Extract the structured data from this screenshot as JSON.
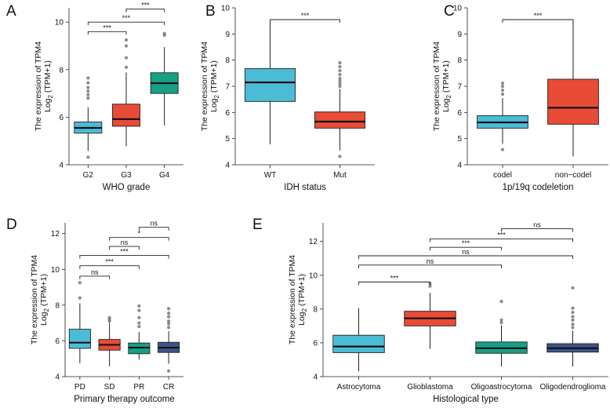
{
  "chart_data": [
    {
      "panel": "A",
      "type": "boxplot",
      "xlabel": "WHO grade",
      "ylabel_line1": "The expression of TPM4",
      "ylabel_line2": "Log2 (TPM+1)",
      "ylim": [
        4,
        10.6
      ],
      "yticks": [
        4,
        6,
        8,
        10
      ],
      "categories": [
        "G2",
        "G3",
        "G4"
      ],
      "colors": [
        "#4cbcd6",
        "#e84b36",
        "#16a085"
      ],
      "boxes": [
        {
          "q1": 5.33,
          "median": 5.55,
          "q3": 5.8,
          "low": 4.58,
          "high": 6.42,
          "outliers": [
            4.32,
            6.8,
            6.95,
            7.1,
            7.25,
            7.45,
            7.65
          ]
        },
        {
          "q1": 5.62,
          "median": 5.92,
          "q3": 6.55,
          "low": 4.78,
          "high": 7.88,
          "outliers": [
            8.1,
            8.5,
            9.0,
            9.25
          ]
        },
        {
          "q1": 7.0,
          "median": 7.43,
          "q3": 7.87,
          "low": 5.65,
          "high": 8.95,
          "outliers": [
            9.45,
            9.52
          ]
        }
      ],
      "comparisons": [
        {
          "from": 0,
          "to": 1,
          "label": "***",
          "y": 9.6
        },
        {
          "from": 0,
          "to": 2,
          "label": "***",
          "y": 10.0
        },
        {
          "from": 1,
          "to": 2,
          "label": "***",
          "y": 10.55
        }
      ]
    },
    {
      "panel": "B",
      "type": "boxplot",
      "xlabel": "IDH status",
      "ylabel_line1": "The expression of TPM4",
      "ylabel_line2": "Log2 (TPM+1)",
      "ylim": [
        4,
        10
      ],
      "yticks": [
        4,
        5,
        6,
        7,
        8,
        9,
        10
      ],
      "categories": [
        "WT",
        "Mut"
      ],
      "colors": [
        "#4cbcd6",
        "#e84b36"
      ],
      "boxes": [
        {
          "q1": 6.42,
          "median": 7.15,
          "q3": 7.68,
          "low": 4.78,
          "high": 9.48,
          "outliers": []
        },
        {
          "q1": 5.4,
          "median": 5.65,
          "q3": 6.02,
          "low": 4.55,
          "high": 6.9,
          "outliers": [
            4.32,
            7.0,
            7.1,
            7.2,
            7.3,
            7.45,
            7.6,
            7.75,
            7.9
          ]
        }
      ],
      "comparisons": [
        {
          "from": 0,
          "to": 1,
          "label": "***",
          "y": 9.55
        }
      ]
    },
    {
      "panel": "C",
      "type": "boxplot",
      "xlabel": "1p/19q codeletion",
      "ylabel_line1": "The expression of TPM4",
      "ylabel_line2": "Log2 (TPM+1)",
      "ylim": [
        4,
        10
      ],
      "yticks": [
        4,
        5,
        6,
        7,
        8,
        9,
        10
      ],
      "categories": [
        "codel",
        "non−codel"
      ],
      "colors": [
        "#4cbcd6",
        "#e84b36"
      ],
      "boxes": [
        {
          "q1": 5.4,
          "median": 5.62,
          "q3": 5.88,
          "low": 4.8,
          "high": 6.55,
          "outliers": [
            4.58,
            6.7,
            6.85,
            7.0,
            7.12
          ]
        },
        {
          "q1": 5.55,
          "median": 6.18,
          "q3": 7.27,
          "low": 4.32,
          "high": 9.52,
          "outliers": []
        }
      ],
      "comparisons": [
        {
          "from": 0,
          "to": 1,
          "label": "***",
          "y": 9.55
        }
      ]
    },
    {
      "panel": "D",
      "type": "boxplot",
      "xlabel": "Primary therapy outcome",
      "ylabel_line1": "The expression of TPM4",
      "ylabel_line2": "Log2 (TPM+1)",
      "ylim": [
        4,
        12.6
      ],
      "yticks": [
        4,
        6,
        8,
        10,
        12
      ],
      "categories": [
        "PD",
        "SD",
        "PR",
        "CR"
      ],
      "colors": [
        "#4cbcd6",
        "#e84b36",
        "#16a085",
        "#3c5488"
      ],
      "boxes": [
        {
          "q1": 5.58,
          "median": 5.9,
          "q3": 6.65,
          "low": 4.75,
          "high": 8.1,
          "outliers": [
            8.4,
            9.25
          ]
        },
        {
          "q1": 5.48,
          "median": 5.78,
          "q3": 6.08,
          "low": 4.58,
          "high": 7.0,
          "outliers": [
            7.1,
            7.2,
            7.3
          ]
        },
        {
          "q1": 5.28,
          "median": 5.62,
          "q3": 5.88,
          "low": 4.95,
          "high": 6.5,
          "outliers": [
            6.8,
            7.0,
            7.3,
            7.7,
            7.95
          ]
        },
        {
          "q1": 5.35,
          "median": 5.62,
          "q3": 5.92,
          "low": 4.72,
          "high": 6.55,
          "outliers": [
            4.32,
            6.75,
            6.95,
            7.1,
            7.35,
            7.55,
            7.8
          ]
        }
      ],
      "comparisons": [
        {
          "from": 0,
          "to": 1,
          "label": "ns",
          "y": 9.62
        },
        {
          "from": 0,
          "to": 2,
          "label": "***",
          "y": 10.2
        },
        {
          "from": 0,
          "to": 3,
          "label": "***",
          "y": 10.78
        },
        {
          "from": 1,
          "to": 2,
          "label": "ns",
          "y": 11.28
        },
        {
          "from": 1,
          "to": 3,
          "label": "*",
          "y": 11.78
        },
        {
          "from": 2,
          "to": 3,
          "label": "ns",
          "y": 12.35
        }
      ]
    },
    {
      "panel": "E",
      "type": "boxplot",
      "xlabel": "Histological type",
      "ylabel_line1": "The expression of TPM4",
      "ylabel_line2": "Log2 (TPM+1)",
      "ylim": [
        4,
        13.1
      ],
      "yticks": [
        4,
        6,
        8,
        10,
        12
      ],
      "categories": [
        "Astrocytoma",
        "Glioblastoma",
        "Oligoastrocytoma",
        "Oligodendroglioma"
      ],
      "colors": [
        "#4cbcd6",
        "#e84b36",
        "#16a085",
        "#3c5488"
      ],
      "boxes": [
        {
          "q1": 5.42,
          "median": 5.78,
          "q3": 6.45,
          "low": 4.32,
          "high": 8.05,
          "outliers": []
        },
        {
          "q1": 7.0,
          "median": 7.45,
          "q3": 7.87,
          "low": 5.65,
          "high": 8.95,
          "outliers": [
            9.35,
            9.5
          ]
        },
        {
          "q1": 5.38,
          "median": 5.68,
          "q3": 6.05,
          "low": 4.6,
          "high": 7.05,
          "outliers": [
            7.2,
            7.35,
            8.45
          ]
        },
        {
          "q1": 5.45,
          "median": 5.68,
          "q3": 5.95,
          "low": 4.6,
          "high": 6.72,
          "outliers": [
            6.9,
            7.1,
            7.35,
            7.55,
            7.8,
            8.05,
            9.25
          ]
        }
      ],
      "comparisons": [
        {
          "from": 0,
          "to": 1,
          "label": "***",
          "y": 9.6
        },
        {
          "from": 0,
          "to": 2,
          "label": "ns",
          "y": 10.6
        },
        {
          "from": 0,
          "to": 3,
          "label": "ns",
          "y": 11.15
        },
        {
          "from": 1,
          "to": 2,
          "label": "***",
          "y": 11.65
        },
        {
          "from": 1,
          "to": 3,
          "label": "***",
          "y": 12.15
        },
        {
          "from": 2,
          "to": 3,
          "label": "ns",
          "y": 12.75
        }
      ]
    }
  ]
}
